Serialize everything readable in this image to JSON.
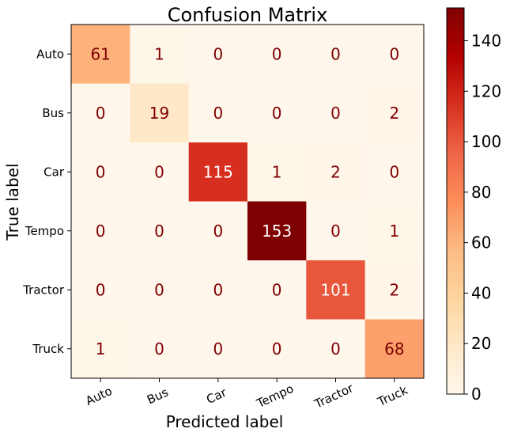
{
  "chart_data": {
    "type": "heatmap",
    "title": "Confusion Matrix",
    "xlabel": "Predicted label",
    "ylabel": "True label",
    "x_categories": [
      "Auto",
      "Bus",
      "Car",
      "Tempo",
      "Tractor",
      "Truck"
    ],
    "y_categories": [
      "Auto",
      "Bus",
      "Car",
      "Tempo",
      "Tractor",
      "Truck"
    ],
    "values": [
      [
        61,
        1,
        0,
        0,
        0,
        0
      ],
      [
        0,
        19,
        0,
        0,
        0,
        2
      ],
      [
        0,
        0,
        115,
        1,
        2,
        0
      ],
      [
        0,
        0,
        0,
        153,
        0,
        1
      ],
      [
        0,
        0,
        0,
        0,
        101,
        2
      ],
      [
        1,
        0,
        0,
        0,
        0,
        68
      ]
    ],
    "colormap": "OrRd",
    "vmin": 0,
    "vmax": 153,
    "colorbar_ticks": [
      0,
      20,
      40,
      60,
      80,
      100,
      120,
      140
    ],
    "colors": {
      "low_text": "#7f0000",
      "high_text": "#ffffff"
    }
  }
}
